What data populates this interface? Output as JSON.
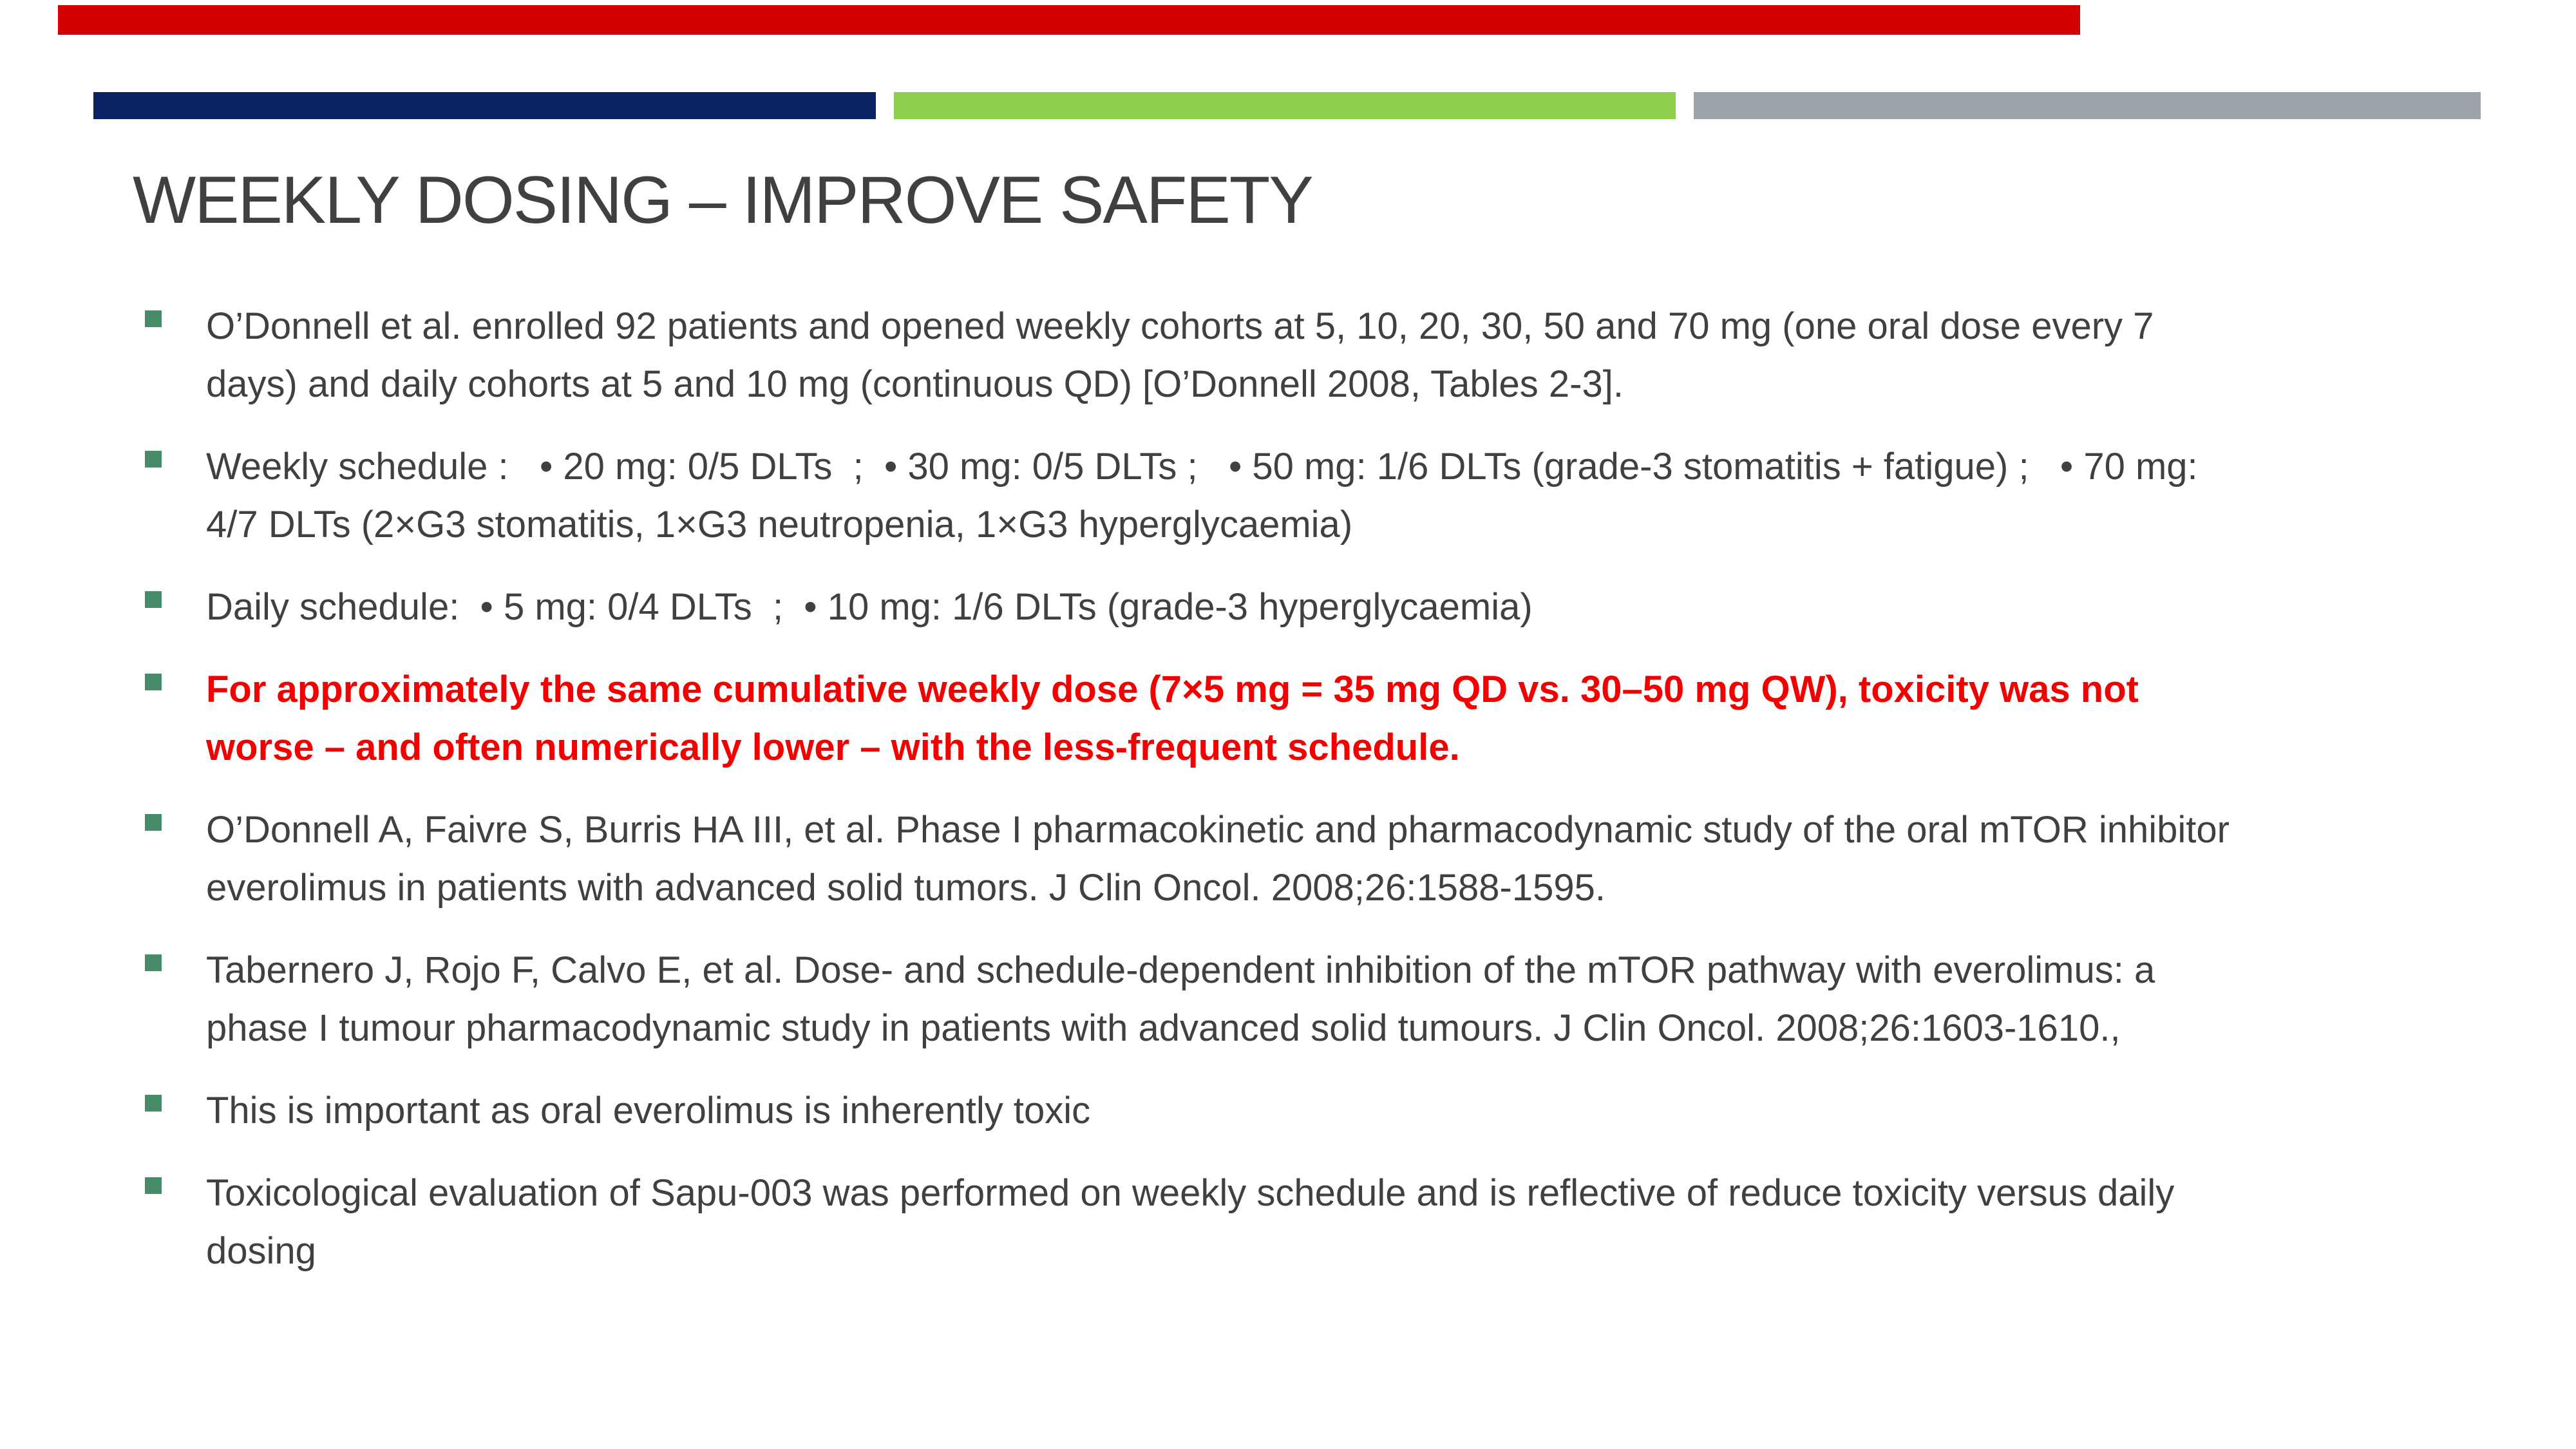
{
  "slide": {
    "title": "WEEKLY DOSING – IMPROVE SAFETY",
    "bullets": [
      {
        "text": "O’Donnell et al. enrolled 92 patients and opened weekly cohorts at 5, 10, 20, 30, 50 and 70 mg (one oral dose every 7\ndays) and daily cohorts at 5 and 10 mg (continuous QD) [O’Donnell 2008, Tables 2-3].",
        "emphasis": false
      },
      {
        "text": "Weekly schedule :   • 20 mg: 0/5 DLTs  ;  • 30 mg: 0/5 DLTs ;   • 50 mg: 1/6 DLTs (grade-3 stomatitis + fatigue) ;   • 70 mg:\n4/7 DLTs (2×G3 stomatitis, 1×G3 neutropenia, 1×G3 hyperglycaemia)",
        "emphasis": false
      },
      {
        "text": "Daily schedule:  • 5 mg: 0/4 DLTs  ;  • 10 mg: 1/6 DLTs (grade-3 hyperglycaemia)",
        "emphasis": false
      },
      {
        "text": "For approximately the same cumulative weekly dose (7×5 mg = 35 mg QD vs. 30–50 mg QW), toxicity was not\nworse – and often numerically lower – with the less-frequent schedule.",
        "emphasis": true
      },
      {
        "text": "O’Donnell A, Faivre S, Burris HA III, et al. Phase I pharmacokinetic and pharmacodynamic study of the oral mTOR inhibitor\neverolimus in patients with advanced solid tumors. J Clin Oncol. 2008;26:1588-1595.",
        "emphasis": false
      },
      {
        "text": "Tabernero J, Rojo F, Calvo E, et al. Dose- and schedule-dependent inhibition of the mTOR pathway with everolimus: a\nphase I tumour pharmacodynamic study in patients with advanced solid tumours. J Clin Oncol. 2008;26:1603-1610.,",
        "emphasis": false
      },
      {
        "text": "This is important as oral everolimus is inherently toxic",
        "emphasis": false
      },
      {
        "text": "Toxicological evaluation of Sapu-003 was performed on weekly schedule and is reflective of reduce toxicity versus daily\ndosing",
        "emphasis": false
      }
    ]
  },
  "icons": {
    "bullet_marker": "green-square"
  },
  "colors": {
    "red_bar": "#D40000",
    "navy": "#0B2265",
    "green": "#8DCE4A",
    "gray": "#9CA2AA",
    "bullet_green": "#468C69",
    "text": "#404040",
    "highlight_red": "#F50000"
  }
}
